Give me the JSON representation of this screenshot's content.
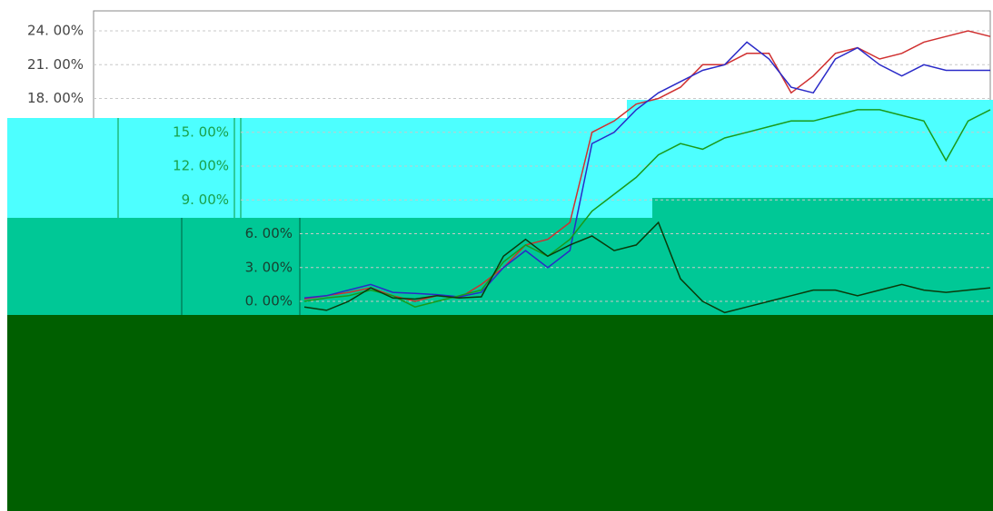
{
  "chart_data": {
    "type": "line",
    "categories": [
      null,
      null,
      null,
      null,
      null,
      null,
      null,
      null,
      null,
      null,
      null,
      null,
      null,
      null,
      null,
      null,
      null,
      null,
      null,
      null,
      null,
      null,
      null,
      null,
      null,
      null,
      null,
      null,
      null,
      null,
      null,
      null
    ],
    "series": [
      {
        "color": "#d03030",
        "values": [
          0.2,
          0.5,
          0.8,
          1.2,
          0.5,
          0,
          0.5,
          0.3,
          1.5,
          3,
          5,
          5.5,
          7,
          15,
          16,
          17.5,
          18,
          19,
          21,
          21,
          22,
          22,
          18.5,
          20,
          22,
          22.5,
          21.5,
          22,
          23,
          23.5,
          24,
          23.5
        ]
      },
      {
        "color": "#2a2ac8",
        "values": [
          0.3,
          0.5,
          1,
          1.5,
          0.8,
          0.7,
          0.6,
          0.4,
          0.8,
          3,
          4.5,
          3,
          4.5,
          14,
          15,
          17,
          18.5,
          19.5,
          20.5,
          21,
          23,
          21.5,
          19,
          18.5,
          21.5,
          22.5,
          21,
          20,
          21,
          20.5,
          20.5,
          20.5
        ]
      },
      {
        "color": "#1a9a1a",
        "values": [
          0,
          0.3,
          0.5,
          1,
          0.5,
          -0.5,
          0,
          0.5,
          1,
          3.5,
          5,
          4,
          5.5,
          8,
          9.5,
          11,
          13,
          14,
          13.5,
          14.5,
          15,
          15.5,
          16,
          16,
          16.5,
          17,
          17,
          16.5,
          16,
          12.5,
          16,
          17
        ]
      },
      {
        "color": "#0a3a0a",
        "values": [
          -0.5,
          -0.8,
          0,
          1.2,
          0.3,
          0.2,
          0.5,
          0.3,
          0.4,
          4,
          5.5,
          4,
          5,
          5.8,
          4.5,
          5,
          7,
          2,
          0,
          -1,
          -0.5,
          0,
          0.5,
          1,
          1,
          0.5,
          1,
          1.5,
          1,
          0.8,
          1,
          1.2
        ]
      }
    ],
    "ylim": [
      -3,
      25.8
    ],
    "yticks": [
      {
        "value": 24,
        "label": "24. 00%"
      },
      {
        "value": 21,
        "label": "21. 00%"
      },
      {
        "value": 18,
        "label": "18. 00%"
      },
      {
        "value": 15,
        "label": "15. 00%"
      },
      {
        "value": 12,
        "label": "12. 00%"
      },
      {
        "value": 9,
        "label": "9. 00%"
      },
      {
        "value": 6,
        "label": "6. 00%"
      },
      {
        "value": 3,
        "label": "3. 00%"
      },
      {
        "value": 0,
        "label": "0. 00%"
      }
    ],
    "grid": true
  }
}
